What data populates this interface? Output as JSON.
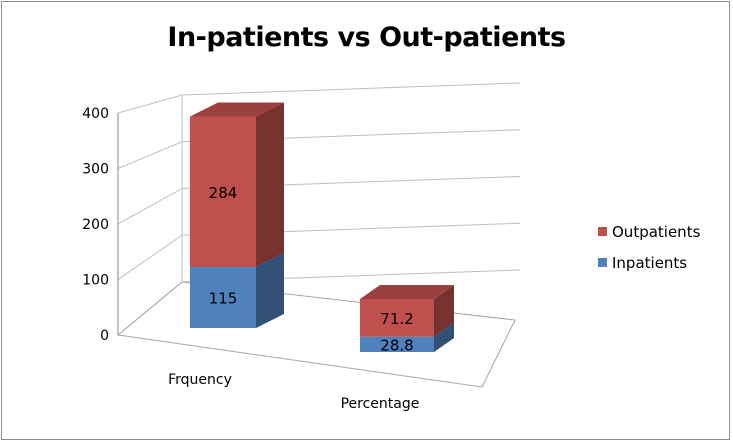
{
  "chart_data": {
    "type": "bar",
    "stacked": true,
    "three_d": true,
    "title": "In-patients vs Out-patients",
    "categories": [
      "Frquency",
      "Percentage"
    ],
    "series": [
      {
        "name": "Inpatients",
        "values": [
          115,
          28.8
        ],
        "color": "#4f81bd"
      },
      {
        "name": "Outpatients",
        "values": [
          284,
          71.2
        ],
        "color": "#c0504d"
      }
    ],
    "ylim": [
      0,
      400
    ],
    "yticks": [
      "0",
      "100",
      "200",
      "300",
      "400"
    ],
    "grid": true,
    "legend_position": "right"
  }
}
